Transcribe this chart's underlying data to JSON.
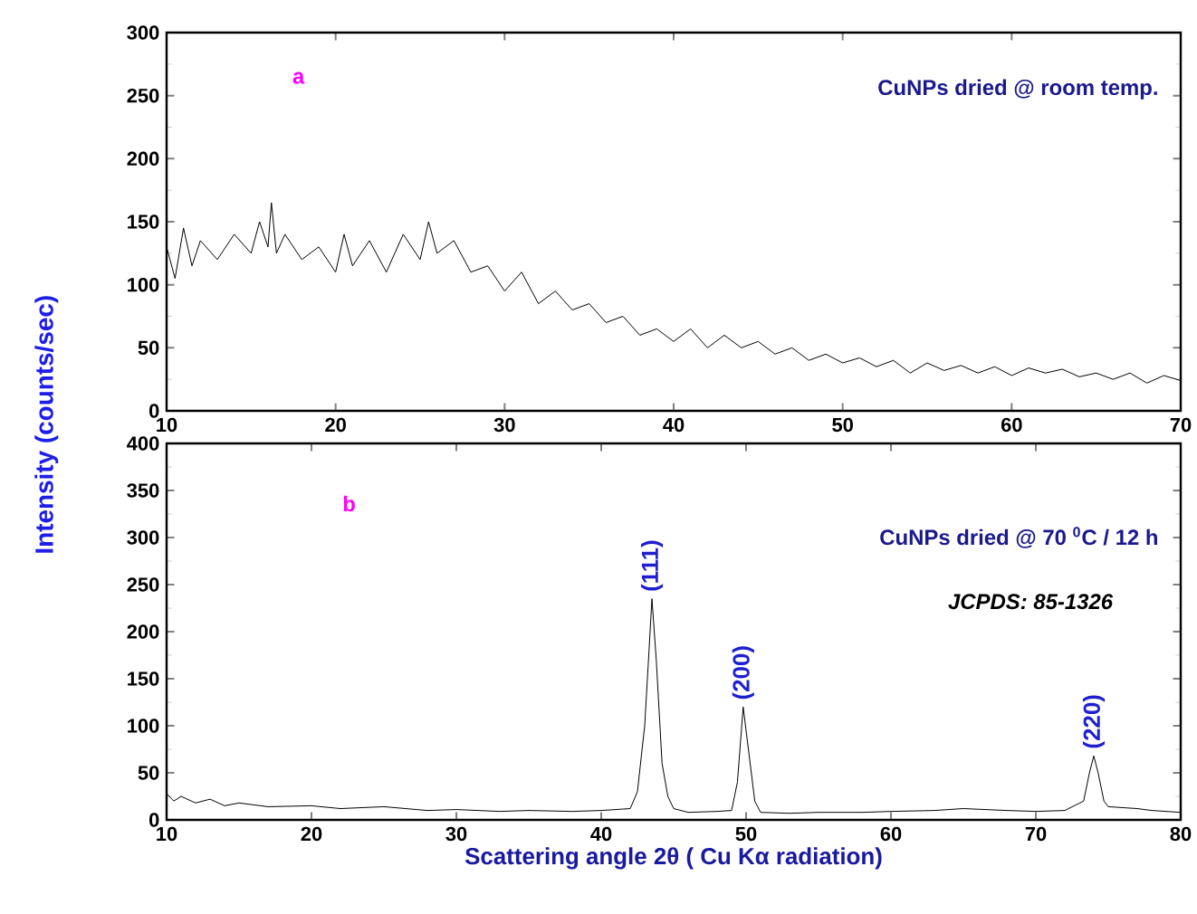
{
  "chart_data": [
    {
      "type": "line",
      "xlim": [
        10,
        70
      ],
      "ylim": [
        0,
        300
      ],
      "xticks": [
        10,
        20,
        30,
        40,
        50,
        60,
        70
      ],
      "yticks": [
        0,
        50,
        100,
        150,
        200,
        250,
        300
      ],
      "annotations": [
        "a",
        "CuNPs dried @ room temp."
      ],
      "series": [
        {
          "color": "#000000",
          "x": [
            10,
            10.5,
            11,
            11.5,
            12,
            13,
            14,
            15,
            15.5,
            16,
            16.2,
            16.5,
            17,
            18,
            19,
            20,
            20.5,
            21,
            22,
            23,
            24,
            25,
            25.5,
            26,
            27,
            28,
            29,
            30,
            31,
            32,
            33,
            34,
            35,
            36,
            37,
            38,
            39,
            40,
            41,
            42,
            43,
            44,
            45,
            46,
            47,
            48,
            49,
            50,
            51,
            52,
            53,
            54,
            55,
            56,
            57,
            58,
            59,
            60,
            61,
            62,
            63,
            64,
            65,
            66,
            67,
            68,
            69,
            70
          ],
          "values": [
            130,
            105,
            145,
            115,
            135,
            120,
            140,
            125,
            150,
            130,
            165,
            125,
            140,
            120,
            130,
            110,
            140,
            115,
            135,
            110,
            140,
            120,
            150,
            125,
            135,
            110,
            115,
            95,
            110,
            85,
            95,
            80,
            85,
            70,
            75,
            60,
            65,
            55,
            65,
            50,
            60,
            50,
            55,
            45,
            50,
            40,
            45,
            38,
            42,
            35,
            40,
            30,
            38,
            32,
            36,
            30,
            35,
            28,
            34,
            30,
            33,
            27,
            30,
            25,
            30,
            22,
            28,
            24
          ]
        }
      ]
    },
    {
      "type": "line",
      "xlim": [
        10,
        80
      ],
      "ylim": [
        0,
        400
      ],
      "xticks": [
        10,
        20,
        30,
        40,
        50,
        60,
        70,
        80
      ],
      "yticks": [
        0,
        50,
        100,
        150,
        200,
        250,
        300,
        350,
        400
      ],
      "xlabel": "Scattering angle 2θ ( Cu Kα radiation)",
      "ylabel": "Intensity (counts/sec)",
      "annotations": [
        "b",
        "CuNPs dried @ 70 $^{0}$C / 12 h",
        "JCPDS: 85-1326",
        {
          "text": "(111)",
          "x": 43.5,
          "y": 235
        },
        {
          "text": "(200)",
          "x": 49.8,
          "y": 120
        },
        {
          "text": "(220)",
          "x": 74,
          "y": 68
        }
      ],
      "series": [
        {
          "color": "#000000",
          "x": [
            10,
            10.5,
            11,
            12,
            13,
            14,
            15,
            17,
            20,
            22,
            25,
            28,
            30,
            33,
            35,
            38,
            40,
            42,
            42.5,
            43,
            43.3,
            43.5,
            43.8,
            44.2,
            44.6,
            45,
            46,
            48,
            49,
            49.4,
            49.8,
            50.2,
            50.6,
            51,
            53,
            55,
            58,
            60,
            63,
            65,
            68,
            70,
            72,
            73.3,
            73.7,
            74,
            74.3,
            74.7,
            75,
            77,
            78,
            80
          ],
          "values": [
            28,
            20,
            25,
            18,
            22,
            15,
            18,
            14,
            15,
            12,
            14,
            10,
            11,
            9,
            10,
            9,
            10,
            12,
            30,
            100,
            180,
            235,
            170,
            60,
            25,
            12,
            8,
            9,
            10,
            40,
            120,
            70,
            20,
            8,
            7,
            8,
            8,
            9,
            10,
            12,
            10,
            9,
            10,
            20,
            50,
            68,
            50,
            20,
            14,
            12,
            10,
            8
          ]
        }
      ]
    }
  ]
}
